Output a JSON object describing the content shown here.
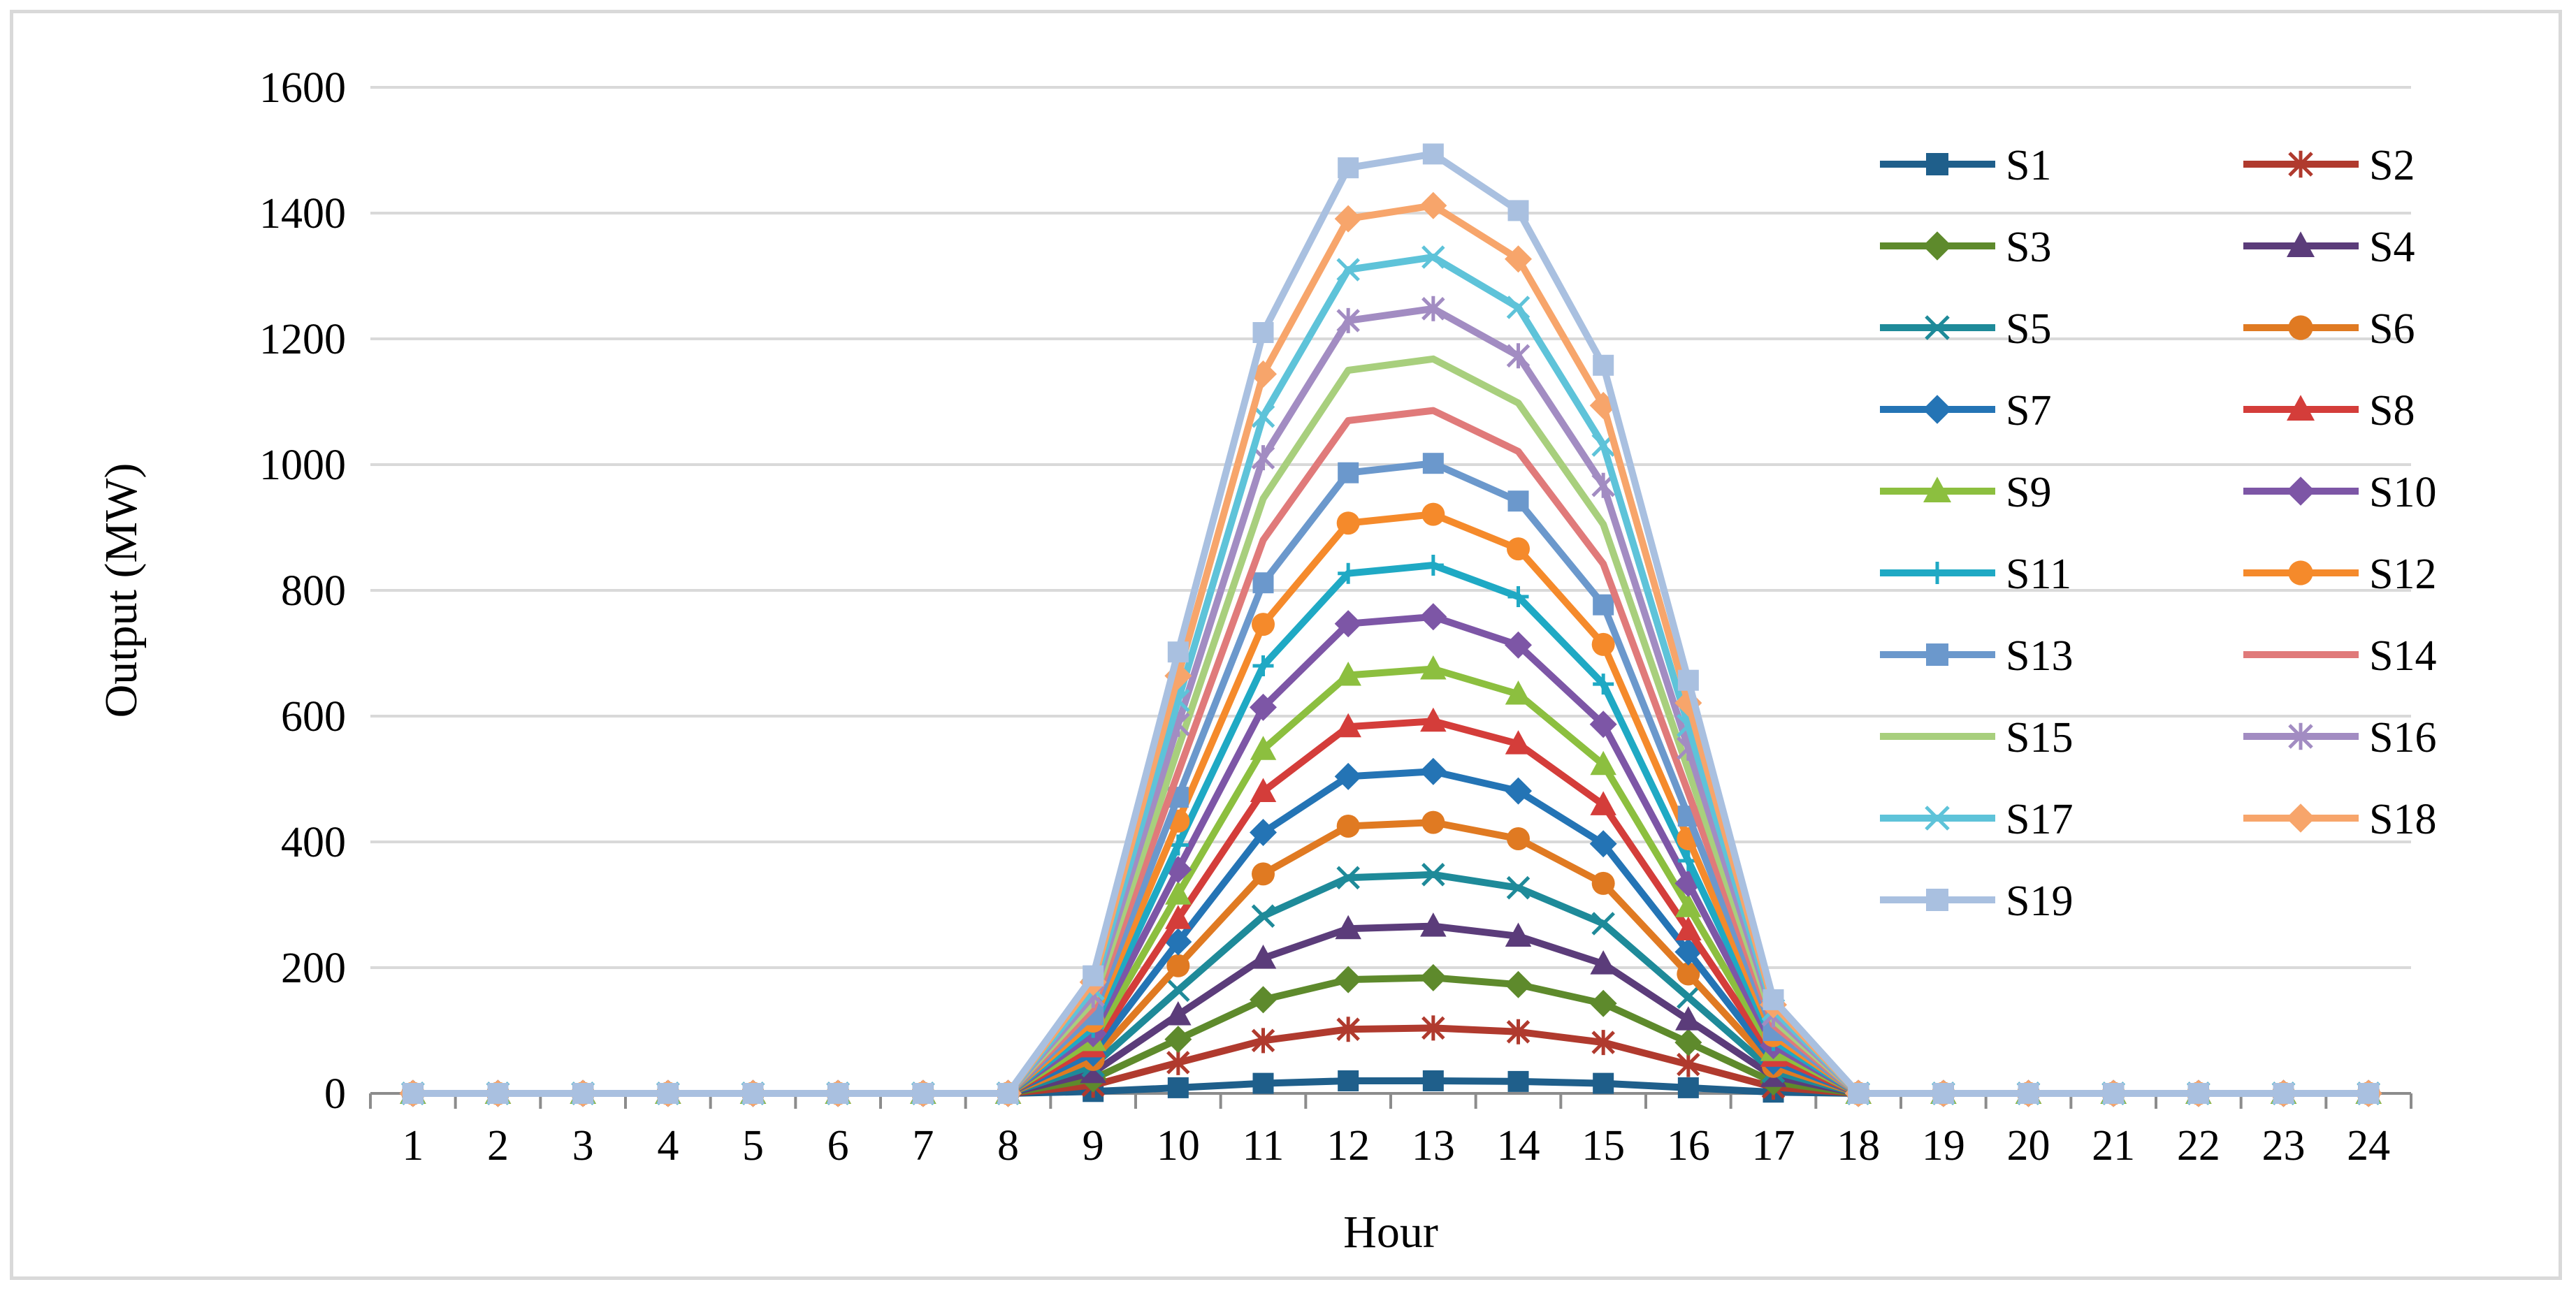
{
  "chart_data": {
    "type": "line",
    "title": "",
    "xlabel": "Hour",
    "ylabel": "Output (MW)",
    "ylim": [
      0,
      1600
    ],
    "yticks": [
      0,
      200,
      400,
      600,
      800,
      1000,
      1200,
      1400,
      1600
    ],
    "x": [
      1,
      2,
      3,
      4,
      5,
      6,
      7,
      8,
      9,
      10,
      11,
      12,
      13,
      14,
      15,
      16,
      17,
      18,
      19,
      20,
      21,
      22,
      23,
      24
    ],
    "grid": "horizontal",
    "legend": "right, two columns",
    "peak_hour13": [
      20,
      104,
      184,
      266,
      348,
      431,
      512,
      592,
      675,
      758,
      840,
      921,
      1002,
      1086,
      1168,
      1248,
      1330,
      1412,
      1494
    ],
    "series": [
      {
        "name": "S1",
        "color": "#1f5f8b",
        "marker": "square"
      },
      {
        "name": "S2",
        "color": "#b03a2e",
        "marker": "star"
      },
      {
        "name": "S3",
        "color": "#5e8a2c",
        "marker": "diamond"
      },
      {
        "name": "S4",
        "color": "#5b3c7a",
        "marker": "triangle"
      },
      {
        "name": "S5",
        "color": "#1e8a99",
        "marker": "x"
      },
      {
        "name": "S6",
        "color": "#e07a22",
        "marker": "circle"
      },
      {
        "name": "S7",
        "color": "#2474b5",
        "marker": "diamond"
      },
      {
        "name": "S8",
        "color": "#d43d3a",
        "marker": "triangle"
      },
      {
        "name": "S9",
        "color": "#8cbf3f",
        "marker": "triangle"
      },
      {
        "name": "S10",
        "color": "#7d56a6",
        "marker": "diamond"
      },
      {
        "name": "S11",
        "color": "#1fa9c4",
        "marker": "plus"
      },
      {
        "name": "S12",
        "color": "#f58a2b",
        "marker": "circle"
      },
      {
        "name": "S13",
        "color": "#6b98cc",
        "marker": "square"
      },
      {
        "name": "S14",
        "color": "#e07a7a",
        "marker": "none"
      },
      {
        "name": "S15",
        "color": "#a8cf7d",
        "marker": "none"
      },
      {
        "name": "S16",
        "color": "#a28cc2",
        "marker": "star"
      },
      {
        "name": "S17",
        "color": "#5ec3d9",
        "marker": "x"
      },
      {
        "name": "S18",
        "color": "#f7a56b",
        "marker": "diamond"
      },
      {
        "name": "S19",
        "color": "#a9c0e0",
        "marker": "square"
      }
    ],
    "shape_profile": {
      "9": 0.125,
      "10": 0.47,
      "11": 0.81,
      "12": 0.985,
      "13": 1.0,
      "14": 0.94,
      "15": 0.775,
      "16": 0.44,
      "17": 0.1
    }
  }
}
